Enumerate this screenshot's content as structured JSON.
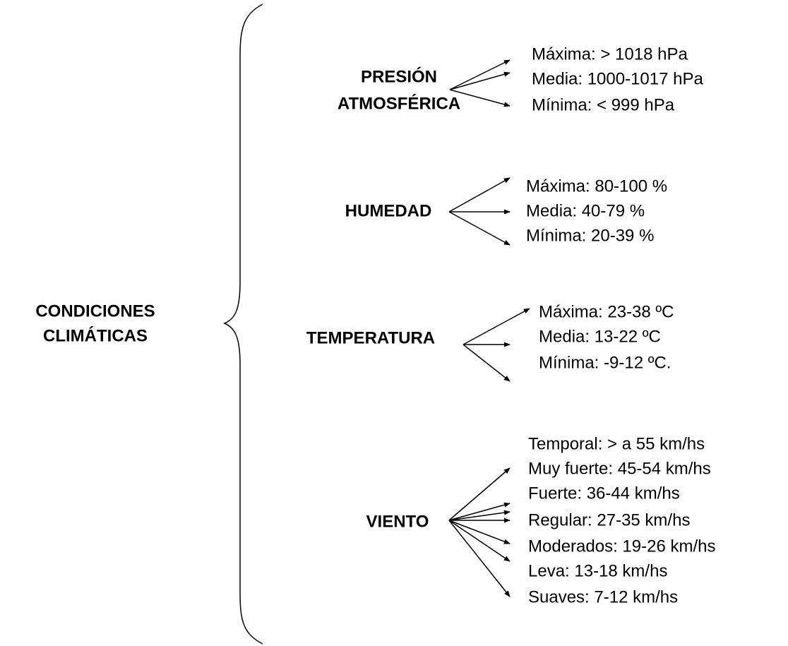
{
  "root": {
    "label": [
      "CONDICIONES",
      "CLIMÁTICAS"
    ]
  },
  "groups": [
    {
      "label": [
        "PRESIÓN",
        "ATMOSFÉRICA"
      ],
      "items": [
        "Máxima: > 1018 hPa",
        "Media: 1000-1017 hPa",
        "Mínima: < 999 hPa"
      ]
    },
    {
      "label": [
        "HUMEDAD"
      ],
      "items": [
        "Máxima: 80-100 %",
        "Media: 40-79 %",
        "Mínima: 20-39 %"
      ]
    },
    {
      "label": [
        "TEMPERATURA"
      ],
      "items": [
        "Máxima: 23-38 ºC",
        "Media: 13-22 ºC",
        "Mínima: -9-12 ºC."
      ]
    },
    {
      "label": [
        "VIENTO"
      ],
      "items": [
        "Temporal: > a 55 km/hs",
        "Muy fuerte: 45-54 km/hs",
        "Fuerte: 36-44 km/hs",
        "Regular: 27-35 km/hs",
        "Moderados: 19-26 km/hs",
        "Leva: 13-18 km/hs",
        "Suaves: 7-12 km/hs"
      ]
    }
  ]
}
